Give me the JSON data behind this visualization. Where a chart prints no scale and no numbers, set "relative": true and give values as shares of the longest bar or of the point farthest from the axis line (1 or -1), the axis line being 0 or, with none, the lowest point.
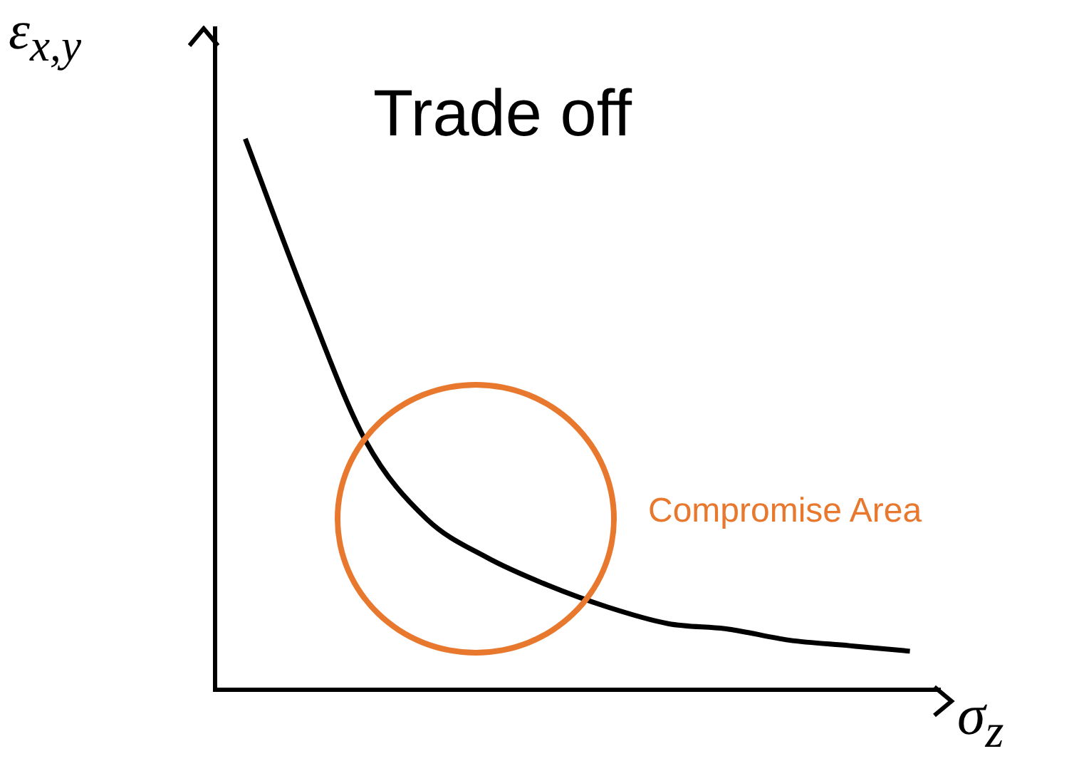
{
  "chart_data": {
    "type": "line",
    "title": "Trade off",
    "xlabel": "σ$_{z}$",
    "ylabel": "ε$_{x,y}$",
    "relative": true,
    "categories": [
      null,
      null,
      null,
      null,
      null,
      null,
      null,
      null,
      null,
      null,
      null,
      null
    ],
    "values": [
      1,
      0.71,
      0.45,
      0.31,
      0.24,
      0.19,
      0.15,
      0.12,
      0.11,
      0.09,
      0.08,
      0.07
    ],
    "color": "#000000",
    "marker": "none",
    "legend": false,
    "annotations": [
      "Compromise Area"
    ]
  }
}
